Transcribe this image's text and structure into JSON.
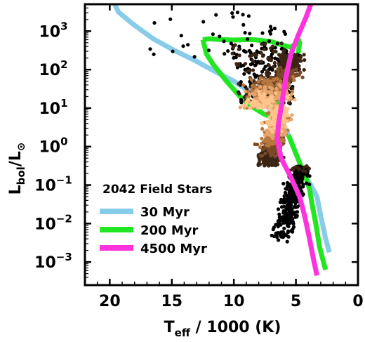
{
  "chart_data": {
    "type": "scatter",
    "xlabel": "T_eff / 1000 (K)",
    "xlabel_main": "T",
    "xlabel_sub": "eff",
    "xlabel_rest": " / 1000 (K)",
    "ylabel_main": "L",
    "ylabel_sub": "bol",
    "ylabel_mid": "/L",
    "ylabel_sun": "⊙",
    "x_reversed": true,
    "xlim": [
      22,
      0
    ],
    "y_scale": "log",
    "ylim_log10": [
      -3.6,
      3.7
    ],
    "x_ticks": [
      20,
      15,
      10,
      5,
      0
    ],
    "x_tick_labels": [
      "20",
      "15",
      "10",
      "5",
      "0"
    ],
    "y_ticks_log10": [
      3,
      2,
      1,
      0,
      -1,
      -2,
      -3
    ],
    "y_tick_labels": [
      {
        "base": "10",
        "exp": "3"
      },
      {
        "base": "10",
        "exp": "2"
      },
      {
        "base": "10",
        "exp": "1"
      },
      {
        "base": "10",
        "exp": "0"
      },
      {
        "base": "10",
        "exp": "−1"
      },
      {
        "base": "10",
        "exp": "−2"
      },
      {
        "base": "10",
        "exp": "−3"
      }
    ],
    "annotation": "2042 Field Stars",
    "legend_placement": "lower-left",
    "series": [
      {
        "name": "30 Myr",
        "kind": "line",
        "color": "#87cce8",
        "points": [
          [
            19.6,
            3.7
          ],
          [
            19.3,
            3.5
          ],
          [
            18.2,
            3.2
          ],
          [
            16.5,
            2.8
          ],
          [
            14.8,
            2.5
          ],
          [
            13.2,
            2.25
          ],
          [
            11.5,
            1.95
          ],
          [
            10.0,
            1.7
          ],
          [
            8.8,
            1.45
          ],
          [
            7.8,
            1.2
          ],
          [
            7.0,
            0.95
          ],
          [
            6.2,
            0.65
          ],
          [
            5.6,
            0.3
          ],
          [
            5.1,
            -0.1
          ],
          [
            4.6,
            -0.5
          ],
          [
            4.2,
            -0.8
          ],
          [
            3.8,
            -1.0
          ],
          [
            3.3,
            -1.3
          ],
          [
            3.0,
            -1.8
          ],
          [
            2.6,
            -2.4
          ],
          [
            2.3,
            -2.75
          ]
        ]
      },
      {
        "name": "200 Myr",
        "kind": "line",
        "color": "#22e622",
        "points": [
          [
            12.5,
            2.78
          ],
          [
            12.0,
            2.8
          ],
          [
            11.0,
            2.78
          ],
          [
            10.0,
            2.77
          ],
          [
            8.5,
            2.78
          ],
          [
            7.0,
            2.73
          ],
          [
            6.0,
            2.63
          ],
          [
            5.4,
            2.58
          ],
          [
            5.0,
            2.68
          ],
          [
            4.8,
            2.78
          ],
          [
            4.7,
            2.7
          ],
          [
            4.8,
            2.45
          ],
          [
            5.3,
            2.05
          ],
          [
            6.0,
            1.55
          ],
          [
            6.5,
            1.1
          ],
          [
            6.9,
            0.75
          ],
          [
            7.6,
            0.85
          ],
          [
            8.6,
            1.05
          ],
          [
            9.5,
            1.3
          ],
          [
            10.6,
            1.7
          ],
          [
            11.7,
            2.15
          ],
          [
            12.2,
            2.4
          ],
          [
            12.5,
            2.78
          ]
        ],
        "tail_points": [
          [
            5.6,
            0.3
          ],
          [
            5.1,
            -0.1
          ],
          [
            4.6,
            -0.5
          ],
          [
            4.2,
            -0.8
          ],
          [
            3.9,
            -1.1
          ],
          [
            3.7,
            -1.5
          ],
          [
            3.4,
            -2.0
          ],
          [
            3.1,
            -2.6
          ],
          [
            2.7,
            -3.1
          ],
          [
            2.6,
            -3.2
          ]
        ]
      },
      {
        "name": "4500 Myr",
        "kind": "line",
        "color": "#ff33dd",
        "points": [
          [
            3.8,
            3.7
          ],
          [
            4.2,
            3.35
          ],
          [
            4.8,
            2.9
          ],
          [
            5.4,
            2.4
          ],
          [
            5.8,
            1.8
          ],
          [
            6.1,
            1.2
          ],
          [
            6.4,
            0.6
          ],
          [
            6.5,
            0.2
          ],
          [
            6.2,
            -0.3
          ],
          [
            5.4,
            -0.8
          ],
          [
            4.7,
            -1.3
          ],
          [
            4.3,
            -1.8
          ],
          [
            3.9,
            -2.4
          ],
          [
            3.6,
            -2.9
          ],
          [
            3.3,
            -3.35
          ]
        ]
      }
    ],
    "field_stars_count": 2042,
    "field_stars_colors": [
      "#000000",
      "#3b2414",
      "#7a4a28",
      "#b8773f",
      "#e6a36b",
      "#ffc48c"
    ]
  }
}
